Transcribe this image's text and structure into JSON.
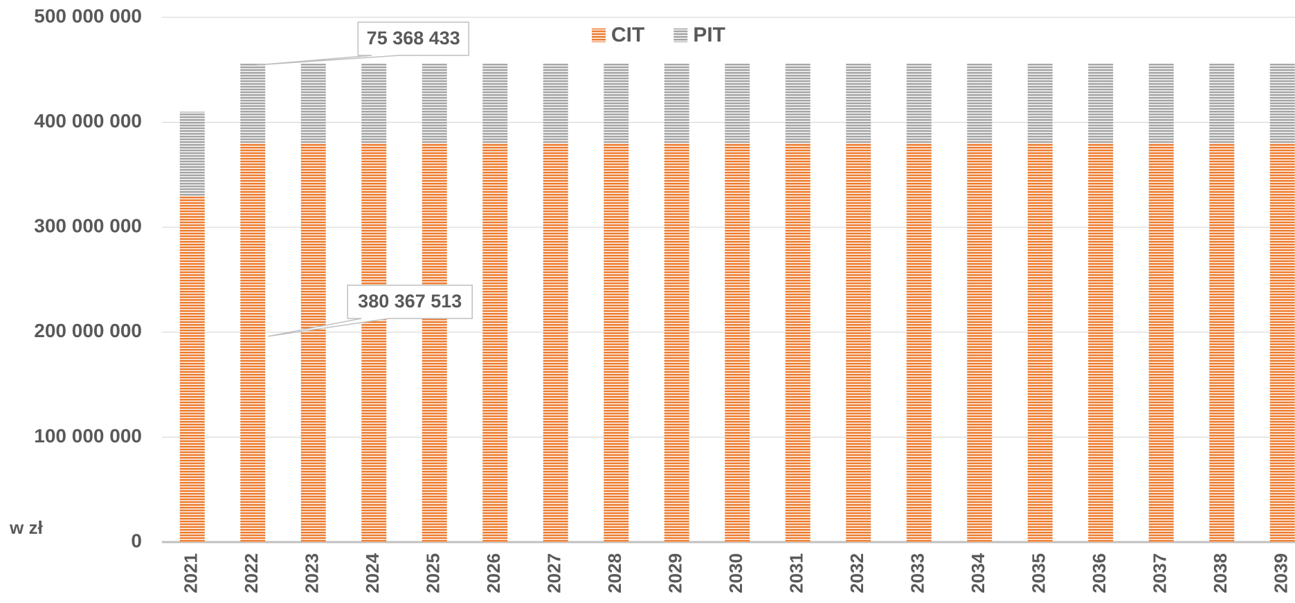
{
  "chart_data": {
    "type": "stacked_bar",
    "y_axis_label": "w zł",
    "categories": [
      "2021",
      "2022",
      "2023",
      "2024",
      "2025",
      "2026",
      "2027",
      "2028",
      "2029",
      "2030",
      "2031",
      "2032",
      "2033",
      "2034",
      "2035",
      "2036",
      "2037",
      "2038",
      "2039"
    ],
    "series": [
      {
        "name": "CIT",
        "color": "#ed7d31",
        "values": [
          330000000,
          380367513,
          380367513,
          380367513,
          380367513,
          380367513,
          380367513,
          380367513,
          380367513,
          380367513,
          380367513,
          380367513,
          380367513,
          380367513,
          380367513,
          380367513,
          380367513,
          380367513,
          380367513
        ],
        "value_labels": [
          null,
          "380 367 513",
          null,
          null,
          null,
          null,
          null,
          null,
          null,
          null,
          null,
          null,
          null,
          null,
          null,
          null,
          null,
          null,
          null
        ]
      },
      {
        "name": "PIT",
        "color": "#a5a5a5",
        "values": [
          80000000,
          75368433,
          75368433,
          75368433,
          75368433,
          75368433,
          75368433,
          75368433,
          75368433,
          75368433,
          75368433,
          75368433,
          75368433,
          75368433,
          75368433,
          75368433,
          75368433,
          75368433,
          75368433
        ],
        "value_labels": [
          null,
          "75 368 433",
          null,
          null,
          null,
          null,
          null,
          null,
          null,
          null,
          null,
          null,
          null,
          null,
          null,
          null,
          null,
          null,
          null
        ]
      }
    ],
    "ylim": [
      0,
      500000000
    ],
    "yticks": [
      0,
      {
        "value": 100000000,
        "label": "100 000 000"
      },
      {
        "value": 200000000,
        "label": "200 000 000"
      },
      {
        "value": 300000000,
        "label": "300 000 000"
      },
      {
        "value": 400000000,
        "label": "400 000 000"
      },
      {
        "value": 500000000,
        "label": "500 000 000"
      }
    ],
    "grid": true,
    "legend": "top"
  }
}
